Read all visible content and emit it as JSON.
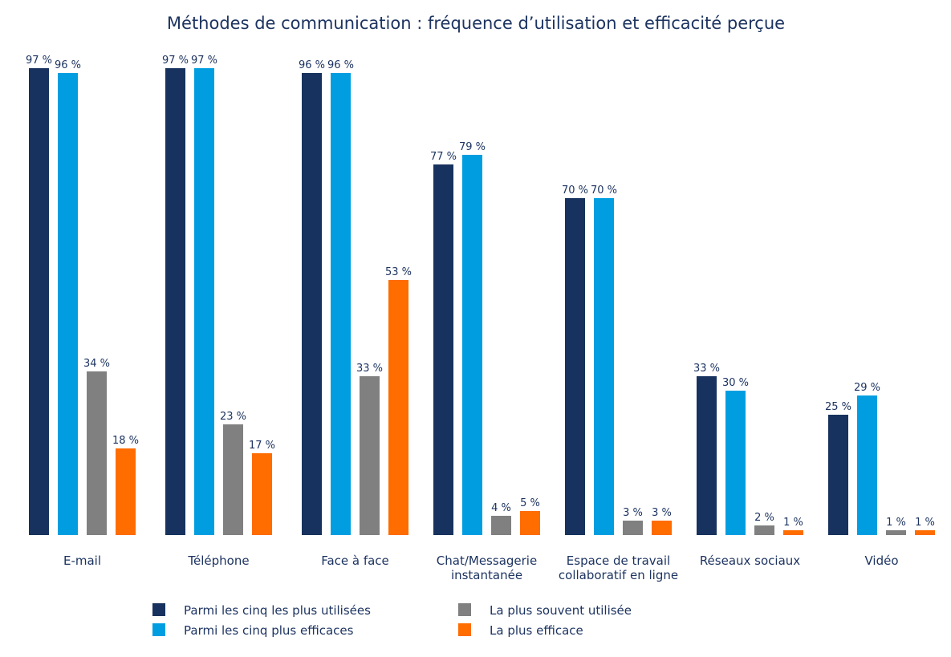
{
  "chart_data": {
    "type": "bar",
    "title": "Méthodes de communication : fréquence d’utilisation et efficacité perçue",
    "categories": [
      "E-mail",
      "Téléphone",
      "Face à face",
      "Chat/Messagerie instantanée",
      "Espace de travail collaboratif en ligne",
      "Réseaux sociaux",
      "Vidéo"
    ],
    "category_lines": [
      [
        "E-mail"
      ],
      [
        "Téléphone"
      ],
      [
        "Face à face"
      ],
      [
        "Chat/Messagerie",
        "instantanée"
      ],
      [
        "Espace de travail",
        "collaboratif en ligne"
      ],
      [
        "Réseaux sociaux"
      ],
      [
        "Vidéo"
      ]
    ],
    "series": [
      {
        "name": "Parmi les cinq les plus utilisées",
        "color": "#17325e",
        "values": [
          97,
          97,
          96,
          77,
          70,
          33,
          25
        ],
        "labels": [
          "97 %",
          "97 %",
          "96 %",
          "77 %",
          "70 %",
          "33 %",
          "25 %"
        ]
      },
      {
        "name": "Parmi les cinq plus efficaces",
        "color": "#009ee0",
        "values": [
          96,
          97,
          96,
          79,
          70,
          30,
          29
        ],
        "labels": [
          "96 %",
          "97 %",
          "96 %",
          "79 %",
          "70 %",
          "30 %",
          "29 %"
        ]
      },
      {
        "name": "La plus souvent utilisée",
        "color": "#808080",
        "values": [
          34,
          23,
          33,
          4,
          3,
          2,
          1
        ],
        "labels": [
          "34 %",
          "23 %",
          "33 %",
          "4 %",
          "3 %",
          "2 %",
          "1 %"
        ]
      },
      {
        "name": "La plus efficace",
        "color": "#ff6c00",
        "values": [
          18,
          17,
          53,
          5,
          3,
          1,
          1
        ],
        "labels": [
          "18 %",
          "17 %",
          "53 %",
          "5 %",
          "3 %",
          "1 %",
          "1 %"
        ]
      }
    ],
    "ylim": [
      0,
      100
    ],
    "grid": false,
    "legend_position": "bottom",
    "legend_columns": [
      [
        0,
        1
      ],
      [
        2,
        3
      ]
    ]
  }
}
